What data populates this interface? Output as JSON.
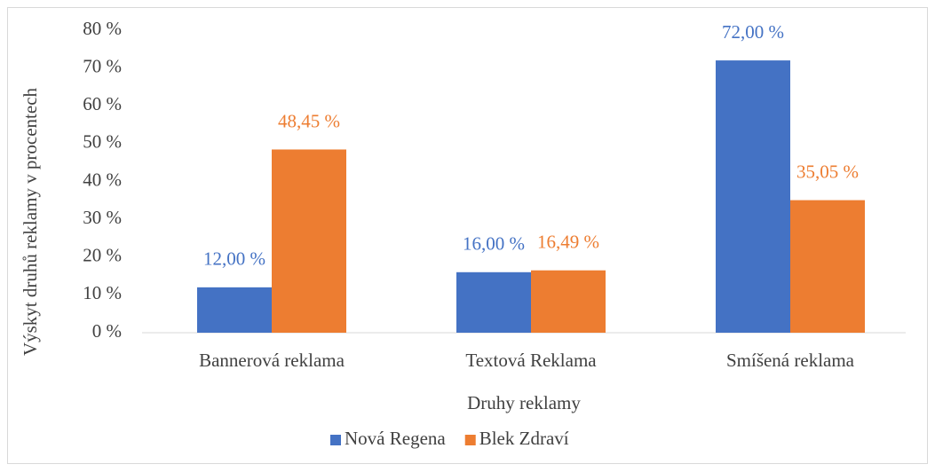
{
  "chart_data": {
    "type": "bar",
    "categories": [
      "Bannerová reklama",
      "Textová Reklama",
      "Smíšená reklama"
    ],
    "series": [
      {
        "name": "Nová Regena",
        "color": "#4472c4",
        "values": [
          12,
          16,
          72
        ],
        "value_labels": [
          "12,00 %",
          "16,00 %",
          "72,00 %"
        ]
      },
      {
        "name": "Blek Zdraví",
        "color": "#ed7d31",
        "values": [
          48.45,
          16.49,
          35.05
        ],
        "value_labels": [
          "48,45 %",
          "16,49 %",
          "35,05 %"
        ]
      }
    ],
    "xlabel": "Druhy reklamy",
    "ylabel": "Výskyt druhů reklamy v procentech",
    "ylim": [
      0,
      80
    ],
    "yticks": [
      {
        "value": 0,
        "label": "0 %"
      },
      {
        "value": 10,
        "label": "10 %"
      },
      {
        "value": 20,
        "label": "20 %"
      },
      {
        "value": 30,
        "label": "30 %"
      },
      {
        "value": 40,
        "label": "40 %"
      },
      {
        "value": 50,
        "label": "50 %"
      },
      {
        "value": 60,
        "label": "60 %"
      },
      {
        "value": 70,
        "label": "70 %"
      },
      {
        "value": 80,
        "label": "80 %"
      }
    ],
    "grid": false,
    "legend": "bottom"
  }
}
